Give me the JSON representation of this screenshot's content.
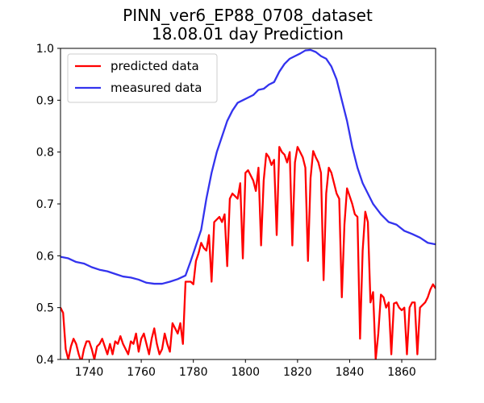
{
  "chart_data": {
    "type": "line",
    "title_line1": "PINN_ver6_EP88_0708_dataset",
    "title_line2": "18.08.01 day Prediction",
    "xlabel": "",
    "ylabel": "",
    "xlim": [
      1729,
      1873
    ],
    "ylim": [
      0.4,
      1.0
    ],
    "x_ticks": [
      1740,
      1760,
      1780,
      1800,
      1820,
      1840,
      1860
    ],
    "y_ticks": [
      0.4,
      0.5,
      0.6,
      0.7,
      0.8,
      0.9,
      1.0
    ],
    "grid": false,
    "legend_position": "top-left",
    "series": [
      {
        "name": "predicted data",
        "color": "#ff0000",
        "points": [
          [
            1729,
            0.5
          ],
          [
            1730,
            0.49
          ],
          [
            1731,
            0.42
          ],
          [
            1732,
            0.4
          ],
          [
            1733,
            0.425
          ],
          [
            1734,
            0.44
          ],
          [
            1735,
            0.43
          ],
          [
            1736,
            0.41
          ],
          [
            1737,
            0.395
          ],
          [
            1738,
            0.42
          ],
          [
            1739,
            0.435
          ],
          [
            1740,
            0.435
          ],
          [
            1741,
            0.42
          ],
          [
            1742,
            0.4
          ],
          [
            1743,
            0.425
          ],
          [
            1744,
            0.43
          ],
          [
            1745,
            0.44
          ],
          [
            1746,
            0.425
          ],
          [
            1747,
            0.41
          ],
          [
            1748,
            0.43
          ],
          [
            1749,
            0.41
          ],
          [
            1750,
            0.435
          ],
          [
            1751,
            0.43
          ],
          [
            1752,
            0.445
          ],
          [
            1753,
            0.43
          ],
          [
            1754,
            0.42
          ],
          [
            1755,
            0.41
          ],
          [
            1756,
            0.435
          ],
          [
            1757,
            0.43
          ],
          [
            1758,
            0.45
          ],
          [
            1759,
            0.415
          ],
          [
            1760,
            0.44
          ],
          [
            1761,
            0.45
          ],
          [
            1762,
            0.43
          ],
          [
            1763,
            0.41
          ],
          [
            1764,
            0.44
          ],
          [
            1765,
            0.46
          ],
          [
            1766,
            0.43
          ],
          [
            1767,
            0.41
          ],
          [
            1768,
            0.42
          ],
          [
            1769,
            0.45
          ],
          [
            1770,
            0.43
          ],
          [
            1771,
            0.415
          ],
          [
            1772,
            0.47
          ],
          [
            1773,
            0.46
          ],
          [
            1774,
            0.45
          ],
          [
            1775,
            0.47
          ],
          [
            1776,
            0.43
          ],
          [
            1777,
            0.55
          ],
          [
            1778,
            0.55
          ],
          [
            1779,
            0.55
          ],
          [
            1780,
            0.545
          ],
          [
            1781,
            0.59
          ],
          [
            1782,
            0.605
          ],
          [
            1783,
            0.625
          ],
          [
            1784,
            0.615
          ],
          [
            1785,
            0.61
          ],
          [
            1786,
            0.64
          ],
          [
            1787,
            0.55
          ],
          [
            1788,
            0.665
          ],
          [
            1789,
            0.67
          ],
          [
            1790,
            0.675
          ],
          [
            1791,
            0.665
          ],
          [
            1792,
            0.68
          ],
          [
            1793,
            0.58
          ],
          [
            1794,
            0.71
          ],
          [
            1795,
            0.72
          ],
          [
            1796,
            0.715
          ],
          [
            1797,
            0.71
          ],
          [
            1798,
            0.74
          ],
          [
            1799,
            0.595
          ],
          [
            1800,
            0.76
          ],
          [
            1801,
            0.765
          ],
          [
            1802,
            0.755
          ],
          [
            1803,
            0.745
          ],
          [
            1804,
            0.725
          ],
          [
            1805,
            0.77
          ],
          [
            1806,
            0.62
          ],
          [
            1807,
            0.745
          ],
          [
            1808,
            0.797
          ],
          [
            1809,
            0.79
          ],
          [
            1810,
            0.775
          ],
          [
            1811,
            0.785
          ],
          [
            1812,
            0.64
          ],
          [
            1813,
            0.81
          ],
          [
            1814,
            0.8
          ],
          [
            1815,
            0.795
          ],
          [
            1816,
            0.78
          ],
          [
            1817,
            0.8
          ],
          [
            1818,
            0.62
          ],
          [
            1819,
            0.78
          ],
          [
            1820,
            0.81
          ],
          [
            1821,
            0.8
          ],
          [
            1822,
            0.79
          ],
          [
            1823,
            0.77
          ],
          [
            1824,
            0.59
          ],
          [
            1825,
            0.75
          ],
          [
            1826,
            0.802
          ],
          [
            1827,
            0.79
          ],
          [
            1828,
            0.78
          ],
          [
            1829,
            0.76
          ],
          [
            1830,
            0.553
          ],
          [
            1831,
            0.72
          ],
          [
            1832,
            0.77
          ],
          [
            1833,
            0.76
          ],
          [
            1834,
            0.74
          ],
          [
            1835,
            0.72
          ],
          [
            1836,
            0.71
          ],
          [
            1837,
            0.52
          ],
          [
            1838,
            0.66
          ],
          [
            1839,
            0.73
          ],
          [
            1840,
            0.715
          ],
          [
            1841,
            0.7
          ],
          [
            1842,
            0.68
          ],
          [
            1843,
            0.675
          ],
          [
            1844,
            0.44
          ],
          [
            1845,
            0.61
          ],
          [
            1846,
            0.685
          ],
          [
            1847,
            0.665
          ],
          [
            1848,
            0.51
          ],
          [
            1849,
            0.53
          ],
          [
            1850,
            0.4
          ],
          [
            1851,
            0.45
          ],
          [
            1852,
            0.525
          ],
          [
            1853,
            0.52
          ],
          [
            1854,
            0.5
          ],
          [
            1855,
            0.51
          ],
          [
            1856,
            0.41
          ],
          [
            1857,
            0.508
          ],
          [
            1858,
            0.51
          ],
          [
            1859,
            0.5
          ],
          [
            1860,
            0.495
          ],
          [
            1861,
            0.5
          ],
          [
            1862,
            0.41
          ],
          [
            1863,
            0.5
          ],
          [
            1864,
            0.51
          ],
          [
            1865,
            0.51
          ],
          [
            1866,
            0.41
          ],
          [
            1867,
            0.5
          ],
          [
            1868,
            0.505
          ],
          [
            1869,
            0.51
          ],
          [
            1870,
            0.52
          ],
          [
            1871,
            0.535
          ],
          [
            1872,
            0.545
          ],
          [
            1873,
            0.537
          ]
        ]
      },
      {
        "name": "measured data",
        "color": "#3333ee",
        "points": [
          [
            1729,
            0.598
          ],
          [
            1732,
            0.595
          ],
          [
            1735,
            0.588
          ],
          [
            1738,
            0.585
          ],
          [
            1741,
            0.578
          ],
          [
            1744,
            0.573
          ],
          [
            1747,
            0.57
          ],
          [
            1750,
            0.565
          ],
          [
            1753,
            0.56
          ],
          [
            1756,
            0.558
          ],
          [
            1759,
            0.554
          ],
          [
            1762,
            0.548
          ],
          [
            1765,
            0.546
          ],
          [
            1768,
            0.546
          ],
          [
            1771,
            0.55
          ],
          [
            1774,
            0.555
          ],
          [
            1777,
            0.562
          ],
          [
            1779,
            0.59
          ],
          [
            1781,
            0.62
          ],
          [
            1783,
            0.65
          ],
          [
            1785,
            0.71
          ],
          [
            1787,
            0.76
          ],
          [
            1789,
            0.8
          ],
          [
            1791,
            0.83
          ],
          [
            1793,
            0.86
          ],
          [
            1795,
            0.88
          ],
          [
            1797,
            0.895
          ],
          [
            1799,
            0.9
          ],
          [
            1801,
            0.905
          ],
          [
            1803,
            0.91
          ],
          [
            1805,
            0.92
          ],
          [
            1807,
            0.922
          ],
          [
            1809,
            0.93
          ],
          [
            1811,
            0.935
          ],
          [
            1813,
            0.955
          ],
          [
            1815,
            0.97
          ],
          [
            1817,
            0.98
          ],
          [
            1819,
            0.985
          ],
          [
            1821,
            0.99
          ],
          [
            1823,
            0.996
          ],
          [
            1825,
            0.997
          ],
          [
            1827,
            0.993
          ],
          [
            1829,
            0.985
          ],
          [
            1831,
            0.98
          ],
          [
            1833,
            0.965
          ],
          [
            1835,
            0.94
          ],
          [
            1837,
            0.9
          ],
          [
            1839,
            0.86
          ],
          [
            1841,
            0.81
          ],
          [
            1843,
            0.77
          ],
          [
            1845,
            0.74
          ],
          [
            1847,
            0.72
          ],
          [
            1849,
            0.7
          ],
          [
            1852,
            0.68
          ],
          [
            1855,
            0.665
          ],
          [
            1858,
            0.66
          ],
          [
            1861,
            0.648
          ],
          [
            1864,
            0.642
          ],
          [
            1867,
            0.635
          ],
          [
            1870,
            0.625
          ],
          [
            1873,
            0.622
          ]
        ]
      }
    ]
  }
}
